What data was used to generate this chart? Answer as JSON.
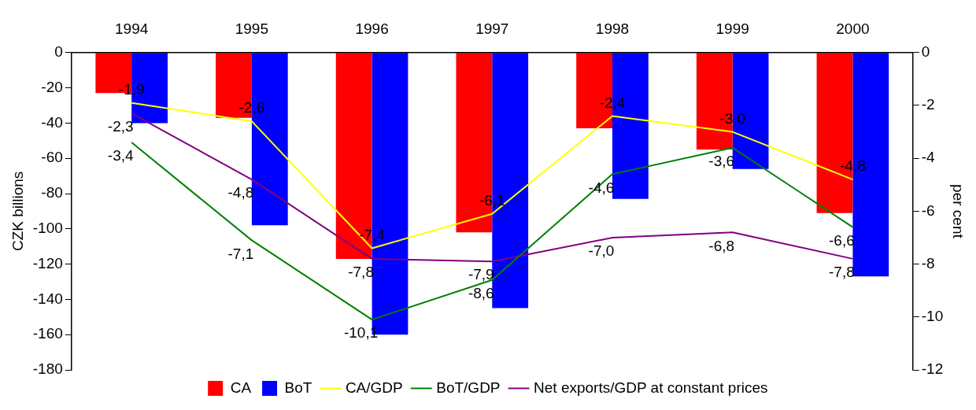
{
  "chart_data": {
    "type": "bar",
    "categories": [
      "1994",
      "1995",
      "1996",
      "1997",
      "1998",
      "1999",
      "2000"
    ],
    "ylabel": "CZK billions",
    "y2label": "per cent",
    "ylim": [
      -180,
      0
    ],
    "yticks": [
      -180,
      -160,
      -140,
      -120,
      -100,
      -80,
      -60,
      -40,
      -20,
      0
    ],
    "y2lim": [
      -12,
      0
    ],
    "y2ticks": [
      -12,
      -10,
      -8,
      -6,
      -4,
      -2,
      0
    ],
    "grid": false,
    "legend": "bottom",
    "marker": "none",
    "series": [
      {
        "name": "CA",
        "color": "#ff0000",
        "values": [
          -23,
          -37,
          -117,
          -102,
          -43,
          -55,
          -91
        ]
      },
      {
        "name": "BoT",
        "color": "#0000ff",
        "values": [
          -40,
          -98,
          -160,
          -145,
          -83,
          -66,
          -127
        ]
      },
      {
        "name": "CA/GDP",
        "type": "line",
        "axis": "y2",
        "color": "#ffff00",
        "values": [
          -1.9,
          -2.6,
          -7.4,
          -6.1,
          -2.4,
          -3.0,
          -4.8
        ],
        "value_labels": [
          "-1,9",
          "-2,6",
          "-7,4",
          "-6,1",
          "-2,4",
          "-3,0",
          "-4,8"
        ]
      },
      {
        "name": "BoT/GDP",
        "type": "line",
        "axis": "y2",
        "color": "#008000",
        "values": [
          -3.4,
          -7.1,
          -10.1,
          -8.6,
          -4.6,
          -3.6,
          -6.6
        ],
        "value_labels": [
          "-3,4",
          "-7,1",
          "-10,1",
          "-8,6",
          "-4,6",
          "-3,6",
          "-6,6"
        ]
      },
      {
        "name": "Net exports/GDP at constant prices",
        "type": "line",
        "axis": "y2",
        "color": "#800080",
        "values": [
          -2.3,
          -4.8,
          -7.8,
          -7.9,
          -7.0,
          -6.8,
          -7.8
        ],
        "value_labels": [
          "-2,3",
          "-4,8",
          "-7,8",
          "-7,9",
          "-7,0",
          "-6,8",
          "-7,8"
        ]
      }
    ]
  }
}
